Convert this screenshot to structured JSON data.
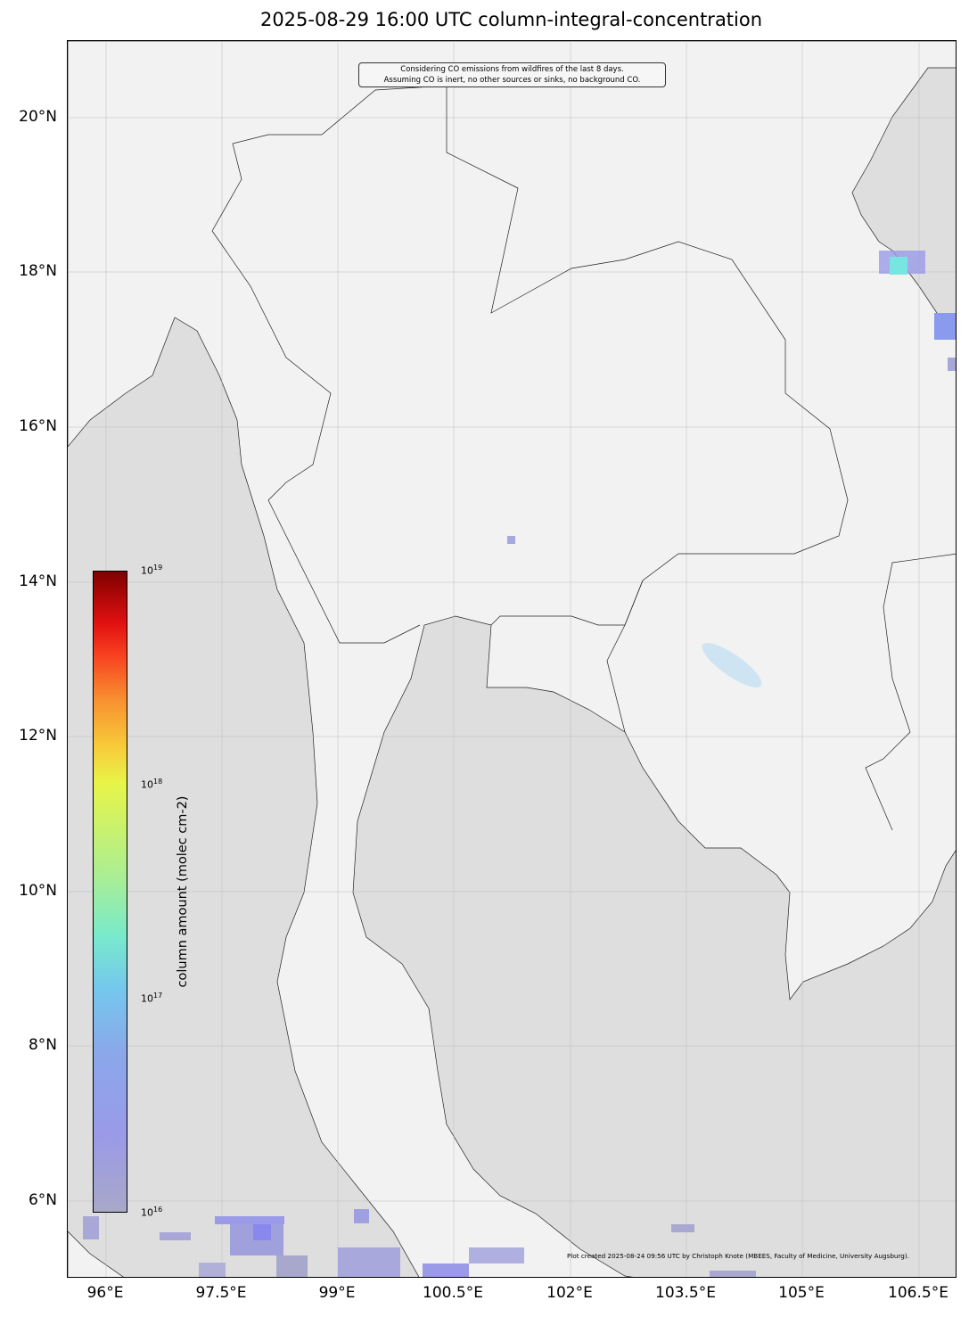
{
  "title": "2025-08-29 16:00 UTC column-integral-concentration",
  "annotation": {
    "line1": "Considering CO emissions from wildfires of the last 8 days.",
    "line2": "Assuming CO is inert, no other sources or sinks, no background CO."
  },
  "credit": "Plot created 2025-08-24 09:56 UTC by Christoph Knote (MBEES, Faculty of Medicine, University Augsburg).",
  "x_ticks": [
    "96°E",
    "97.5°E",
    "99°E",
    "100.5°E",
    "102°E",
    "103.5°E",
    "105°E",
    "106.5°E"
  ],
  "y_ticks": [
    "20°N",
    "18°N",
    "16°N",
    "14°N",
    "12°N",
    "10°N",
    "8°N",
    "6°N"
  ],
  "colorbar": {
    "label": "column amount (molec cm-2)",
    "ticks": [
      {
        "base": "10",
        "exp": "19"
      },
      {
        "base": "10",
        "exp": "18"
      },
      {
        "base": "10",
        "exp": "17"
      },
      {
        "base": "10",
        "exp": "16"
      }
    ],
    "scale": "log",
    "range": [
      "1e16",
      "1e19"
    ],
    "colormap": "purple-blue-cyan-yellow-red"
  },
  "colors": {
    "land": "#f2f2f2",
    "sea": "#dedede",
    "plume_low": "#9a9ae8"
  }
}
